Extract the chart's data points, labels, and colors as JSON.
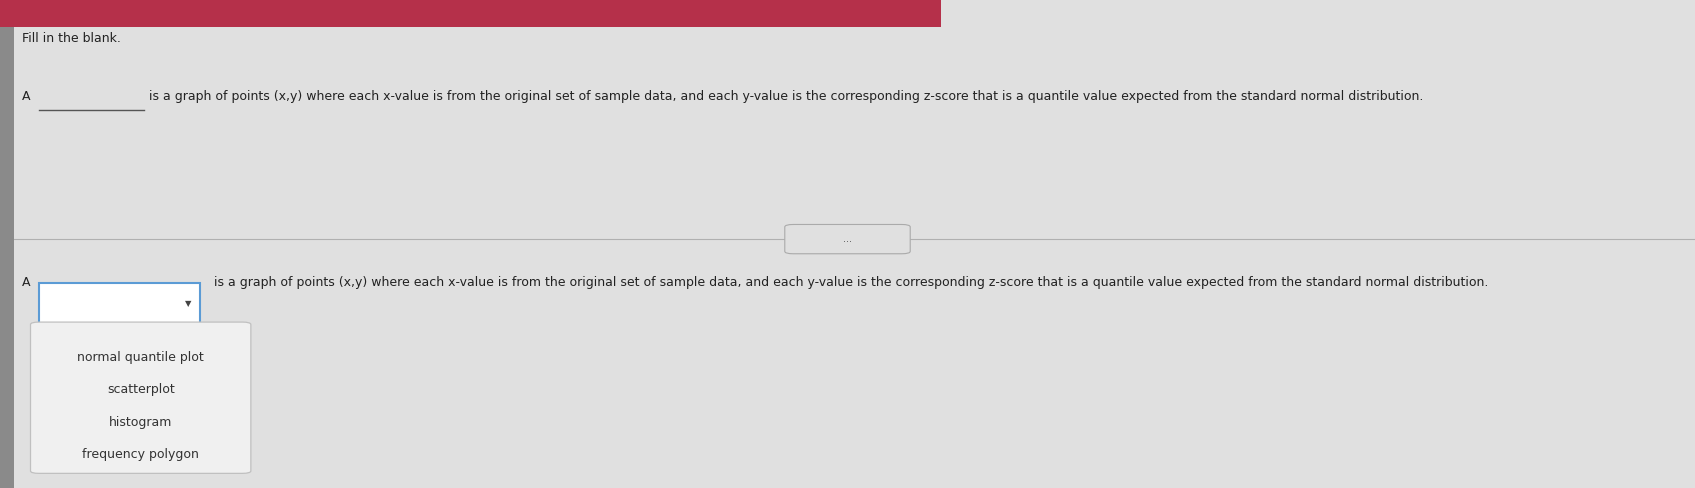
{
  "title_bar_color": "#b5304a",
  "bg_color": "#e0e0e0",
  "fill_in_blank_text": "Fill in the blank.",
  "question_label": "A",
  "question_underline": "____________",
  "question_rest": "is a graph of points (x,y) where each x-value is from the original set of sample data, and each y-value is the corresponding z-score that is a quantile value expected from the standard normal distribution.",
  "answer_label": "A",
  "answer_question_text": "is a graph of points (x,y) where each x-value is from the original set of sample data, and each y-value is the corresponding z-score that is a quantile value expected from the standard normal distribution.",
  "dropdown_options": [
    "normal quantile plot",
    "scatterplot",
    "histogram",
    "frequency polygon"
  ],
  "dots_text": "...",
  "left_strip_color": "#8a8a8a",
  "text_color": "#222222",
  "divider_color": "#b0b0b0",
  "dropdown_border_color": "#5b9bd5",
  "dropdown_bg": "#ffffff",
  "menu_bg": "#f0f0f0",
  "menu_border": "#c0c0c0",
  "font_size_title": 9,
  "font_size_text": 9,
  "font_size_options": 9
}
